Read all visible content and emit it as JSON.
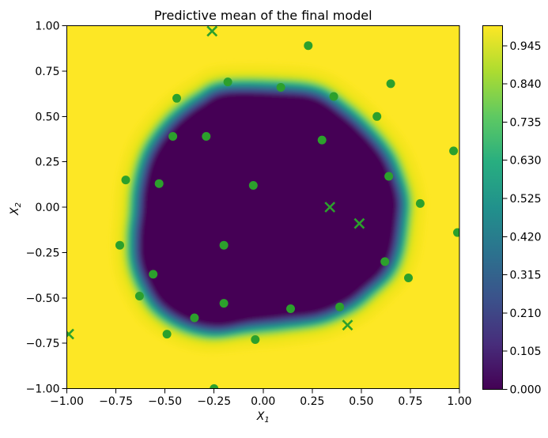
{
  "title": "Predictive mean of the final model",
  "axis": {
    "xlabel_base": "X",
    "xlabel_sub": "1",
    "ylabel_base": "X",
    "ylabel_sub": "2"
  },
  "chart_data": {
    "type": "heatmap",
    "title": "Predictive mean of the final model",
    "xlabel": "X_1",
    "ylabel": "X_2",
    "xlim": [
      -1,
      1
    ],
    "ylim": [
      -1,
      1
    ],
    "xtick_labels": [
      "−1.00",
      "−0.75",
      "−0.50",
      "−0.25",
      "0.00",
      "0.25",
      "0.50",
      "0.75",
      "1.00"
    ],
    "xtick_values": [
      -1,
      -0.75,
      -0.5,
      -0.25,
      0,
      0.25,
      0.5,
      0.75,
      1
    ],
    "ytick_labels": [
      "1.00",
      "0.75",
      "0.50",
      "0.25",
      "0.00",
      "−0.25",
      "−0.50",
      "−0.75",
      "−1.00"
    ],
    "ytick_values": [
      1,
      0.75,
      0.5,
      0.25,
      0,
      -0.25,
      -0.5,
      -0.75,
      -1
    ],
    "colormap": "viridis",
    "colormap_stops": [
      [
        0,
        "#440154"
      ],
      [
        0.125,
        "#472d7b"
      ],
      [
        0.25,
        "#3b528b"
      ],
      [
        0.375,
        "#2c728e"
      ],
      [
        0.5,
        "#21918c"
      ],
      [
        0.625,
        "#28ae80"
      ],
      [
        0.75,
        "#5ec962"
      ],
      [
        0.875,
        "#addc30"
      ],
      [
        1,
        "#fde725"
      ]
    ],
    "colorbar": {
      "tick_labels": [
        "0.000",
        "0.105",
        "0.210",
        "0.315",
        "0.420",
        "0.525",
        "0.630",
        "0.735",
        "0.840",
        "0.945"
      ],
      "tick_values": [
        0,
        0.105,
        0.21,
        0.315,
        0.42,
        0.525,
        0.63,
        0.735,
        0.84,
        0.945
      ],
      "vmin": 0.0,
      "vmax": 1.0
    },
    "field_description": "predictive mean ~0 inside closed region, ~1 outside, smooth transition at boundary",
    "region_boundary": [
      [
        0.08,
        0.672
      ],
      [
        -0.2,
        0.672
      ],
      [
        -0.33,
        0.607
      ],
      [
        -0.46,
        0.5
      ],
      [
        -0.56,
        0.37
      ],
      [
        -0.615,
        0.25
      ],
      [
        -0.648,
        0.1
      ],
      [
        -0.658,
        -0.03
      ],
      [
        -0.67,
        -0.16
      ],
      [
        -0.665,
        -0.3
      ],
      [
        -0.625,
        -0.43
      ],
      [
        -0.545,
        -0.565
      ],
      [
        -0.41,
        -0.66
      ],
      [
        -0.25,
        -0.7
      ],
      [
        -0.07,
        -0.675
      ],
      [
        0.11,
        -0.655
      ],
      [
        0.3,
        -0.625
      ],
      [
        0.45,
        -0.555
      ],
      [
        0.55,
        -0.47
      ],
      [
        0.645,
        -0.37
      ],
      [
        0.695,
        -0.25
      ],
      [
        0.72,
        -0.08
      ],
      [
        0.725,
        0.05
      ],
      [
        0.69,
        0.185
      ],
      [
        0.64,
        0.3
      ],
      [
        0.55,
        0.42
      ],
      [
        0.43,
        0.54
      ],
      [
        0.28,
        0.645
      ]
    ],
    "scatter_dots": [
      [
        -0.73,
        -0.21
      ],
      [
        -0.7,
        0.15
      ],
      [
        -0.63,
        -0.49
      ],
      [
        -0.56,
        -0.37
      ],
      [
        -0.53,
        0.13
      ],
      [
        -0.49,
        -0.7
      ],
      [
        -0.46,
        0.39
      ],
      [
        -0.44,
        0.6
      ],
      [
        -0.35,
        -0.61
      ],
      [
        -0.29,
        0.39
      ],
      [
        -0.25,
        -1.0
      ],
      [
        -0.2,
        -0.21
      ],
      [
        -0.2,
        -0.53
      ],
      [
        -0.18,
        0.69
      ],
      [
        -0.05,
        0.12
      ],
      [
        -0.04,
        -0.73
      ],
      [
        0.09,
        0.66
      ],
      [
        0.14,
        -0.56
      ],
      [
        0.23,
        0.89
      ],
      [
        0.3,
        0.37
      ],
      [
        0.36,
        0.61
      ],
      [
        0.39,
        -0.55
      ],
      [
        0.58,
        0.5
      ],
      [
        0.62,
        -0.3
      ],
      [
        0.64,
        0.17
      ],
      [
        0.65,
        0.68
      ],
      [
        0.74,
        -0.39
      ],
      [
        0.8,
        0.02
      ],
      [
        0.97,
        0.31
      ],
      [
        0.99,
        -0.14
      ]
    ],
    "scatter_crosses": [
      [
        -0.99,
        -0.7
      ],
      [
        -0.26,
        0.97
      ],
      [
        0.34,
        0.0
      ],
      [
        0.49,
        -0.09
      ],
      [
        0.43,
        -0.65
      ]
    ],
    "marker_color": "#2ca02c"
  }
}
